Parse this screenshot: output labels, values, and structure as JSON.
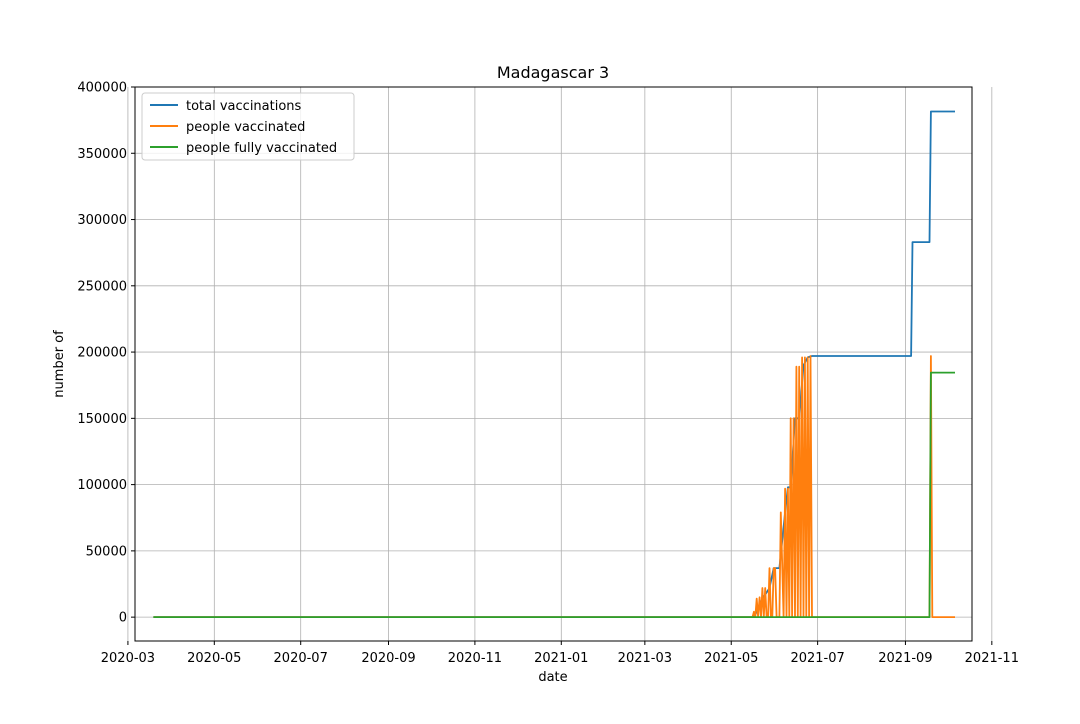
{
  "chart_data": {
    "type": "line",
    "title": "Madagascar 3",
    "xlabel": "date",
    "ylabel": "number of",
    "xlim": [
      "2020-03-06",
      "2021-10-18"
    ],
    "ylim": [
      -18000,
      400000
    ],
    "grid": true,
    "legend": "top-left",
    "x_ticks": [
      "2020-03",
      "2020-05",
      "2020-07",
      "2020-09",
      "2020-11",
      "2021-01",
      "2021-03",
      "2021-05",
      "2021-07",
      "2021-09",
      "2021-11"
    ],
    "y_ticks": [
      0,
      50000,
      100000,
      150000,
      200000,
      250000,
      300000,
      350000,
      400000
    ],
    "series": [
      {
        "name": "total vaccinations",
        "color": "#1f77b4",
        "x": [
          "2020-03-19",
          "2021-05-17",
          "2021-05-19",
          "2021-05-21",
          "2021-05-23",
          "2021-05-25",
          "2021-05-28",
          "2021-05-31",
          "2021-06-04",
          "2021-06-08",
          "2021-06-10",
          "2021-06-12",
          "2021-06-15",
          "2021-06-18",
          "2021-06-21",
          "2021-06-24",
          "2021-06-27",
          "2021-09-05",
          "2021-09-06",
          "2021-09-18",
          "2021-09-19",
          "2021-10-06"
        ],
        "y": [
          0,
          0,
          4000,
          8000,
          14000,
          17000,
          22000,
          37000,
          37000,
          79000,
          98000,
          98000,
          150000,
          150000,
          190000,
          196000,
          197000,
          197000,
          283000,
          283000,
          381500,
          381500
        ]
      },
      {
        "name": "people vaccinated",
        "color": "#ff7f0e",
        "x": [
          "2020-03-19",
          "2021-05-16",
          "2021-05-17",
          "2021-05-18",
          "2021-05-19",
          "2021-05-20",
          "2021-05-21",
          "2021-05-22",
          "2021-05-23",
          "2021-05-24",
          "2021-05-25",
          "2021-05-26",
          "2021-05-27",
          "2021-05-28",
          "2021-05-29",
          "2021-05-30",
          "2021-05-31",
          "2021-06-01",
          "2021-06-02",
          "2021-06-04",
          "2021-06-05",
          "2021-06-07",
          "2021-06-08",
          "2021-06-09",
          "2021-06-10",
          "2021-06-11",
          "2021-06-12",
          "2021-06-13",
          "2021-06-14",
          "2021-06-15",
          "2021-06-16",
          "2021-06-17",
          "2021-06-18",
          "2021-06-19",
          "2021-06-20",
          "2021-06-21",
          "2021-06-22",
          "2021-06-23",
          "2021-06-24",
          "2021-06-25",
          "2021-06-26",
          "2021-06-27",
          "2021-06-28",
          "2021-09-18",
          "2021-09-19",
          "2021-09-20",
          "2021-10-06"
        ],
        "y": [
          0,
          0,
          4000,
          0,
          14000,
          0,
          15000,
          0,
          22000,
          0,
          22000,
          0,
          0,
          37000,
          0,
          0,
          37000,
          37000,
          0,
          0,
          79000,
          0,
          97000,
          0,
          97000,
          0,
          150000,
          0,
          150000,
          0,
          189000,
          0,
          189000,
          0,
          196000,
          0,
          196000,
          0,
          196000,
          0,
          197000,
          0,
          0,
          0,
          197000,
          0,
          0
        ]
      },
      {
        "name": "people fully vaccinated",
        "color": "#2ca02c",
        "x": [
          "2020-03-19",
          "2021-09-18",
          "2021-09-19",
          "2021-10-06"
        ],
        "y": [
          0,
          0,
          184500,
          184500
        ]
      }
    ]
  }
}
